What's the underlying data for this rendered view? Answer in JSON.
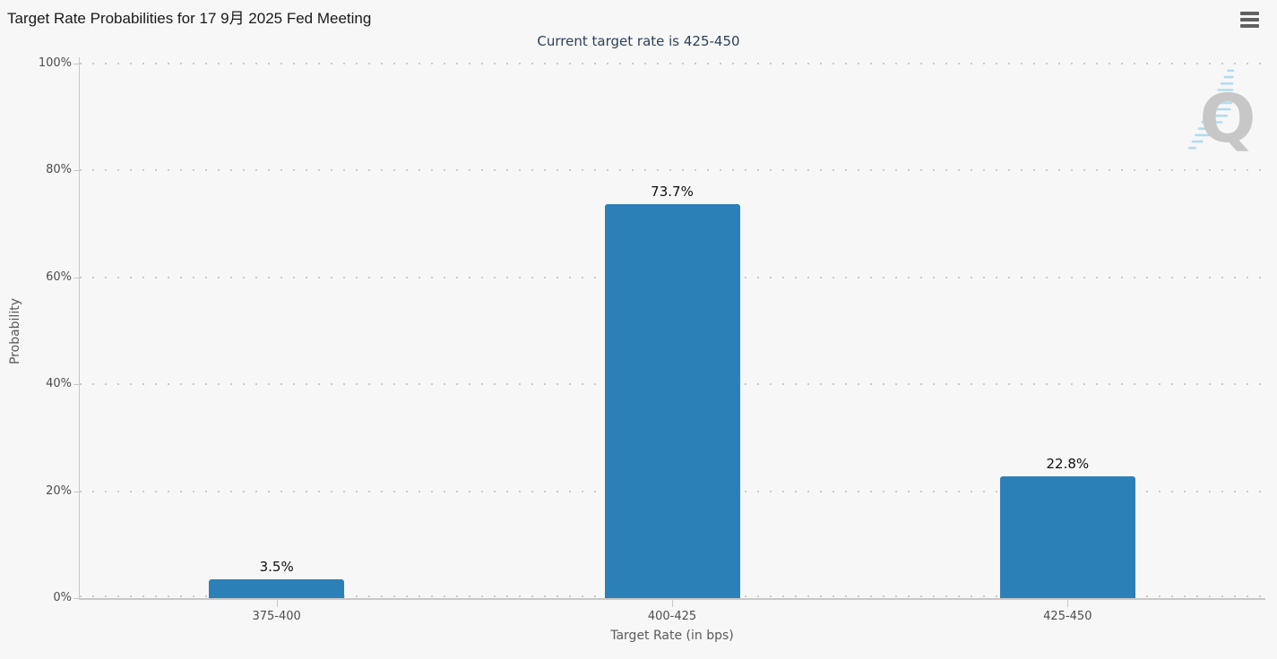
{
  "header": {
    "title": "Target Rate Probabilities for 17 9月 2025 Fed Meeting",
    "subtitle": "Current target rate is 425-450",
    "menu_icon": "hamburger-menu"
  },
  "watermark": {
    "letter": "Q"
  },
  "colors": {
    "bar": "#2b80b8",
    "background": "#f7f7f7",
    "grid": "#cbcbcb",
    "subtitle_text": "#2e3f55",
    "watermark_gray": "#c7c7c7",
    "watermark_blue": "#b4dbec"
  },
  "chart_data": {
    "type": "bar",
    "categories": [
      "375-400",
      "400-425",
      "425-450"
    ],
    "values": [
      3.5,
      73.7,
      22.8
    ],
    "value_labels": [
      "3.5%",
      "73.7%",
      "22.8%"
    ],
    "title": "Target Rate Probabilities for 17 9月 2025 Fed Meeting",
    "subtitle": "Current target rate is 425-450",
    "xlabel": "Target Rate (in bps)",
    "ylabel": "Probability",
    "ylim": [
      0,
      100
    ],
    "yticks": [
      0,
      20,
      40,
      60,
      80,
      100
    ],
    "ytick_labels": [
      "0%",
      "20%",
      "40%",
      "60%",
      "80%",
      "100%"
    ],
    "grid": "horizontal dotted",
    "legend_position": "none",
    "bar_color": "#2b80b8"
  }
}
